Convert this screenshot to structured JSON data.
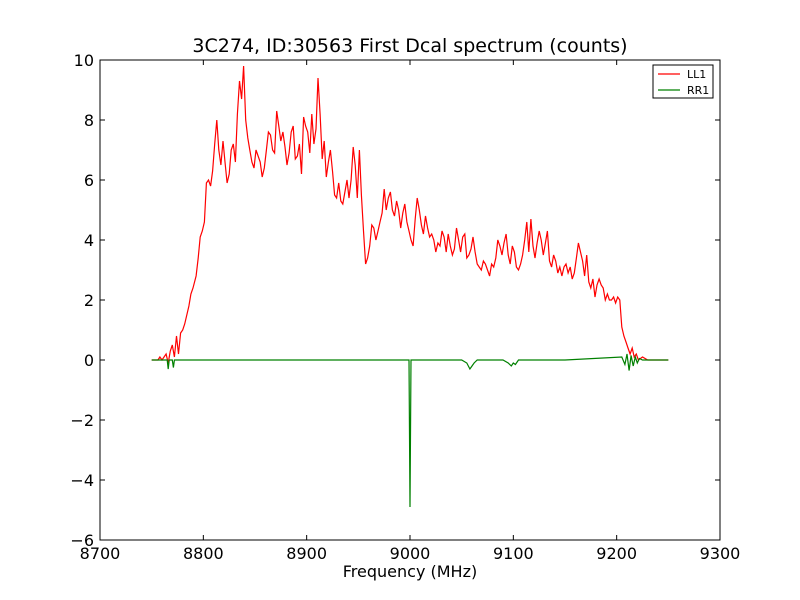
{
  "chart_data": {
    "type": "line",
    "title": "3C274, ID:30563 First Dcal spectrum (counts)",
    "xlabel": "Frequency (MHz)",
    "ylabel": "",
    "xlim": [
      8700,
      9300
    ],
    "ylim": [
      -6,
      10
    ],
    "xticks": [
      8700,
      8800,
      8900,
      9000,
      9100,
      9200,
      9300
    ],
    "yticks": [
      -6,
      -4,
      -2,
      0,
      2,
      4,
      6,
      8,
      10
    ],
    "xtick_labels": [
      "8700",
      "8800",
      "8900",
      "9000",
      "9100",
      "9200",
      "9300"
    ],
    "ytick_labels": [
      "−6",
      "−4",
      "−2",
      "0",
      "2",
      "4",
      "6",
      "8",
      "10"
    ],
    "grid": false,
    "legend_position": "top-right",
    "series": [
      {
        "name": "LL1",
        "color": "#ff0000",
        "x": [
          8750,
          8756,
          8758,
          8760,
          8764,
          8766,
          8768,
          8770,
          8772,
          8774,
          8776,
          8778,
          8780,
          8782,
          8784,
          8786,
          8788,
          8790,
          8793,
          8795,
          8797,
          8799,
          8801,
          8803,
          8805,
          8807,
          8809,
          8811,
          8813,
          8815,
          8817,
          8819,
          8821,
          8823,
          8825,
          8827,
          8829,
          8831,
          8833,
          8835,
          8837,
          8839,
          8841,
          8843,
          8845,
          8847,
          8849,
          8851,
          8853,
          8855,
          8857,
          8859,
          8861,
          8863,
          8865,
          8867,
          8869,
          8871,
          8873,
          8875,
          8877,
          8879,
          8881,
          8883,
          8885,
          8887,
          8889,
          8891,
          8893,
          8895,
          8897,
          8899,
          8901,
          8903,
          8905,
          8907,
          8909,
          8911,
          8913,
          8915,
          8917,
          8919,
          8921,
          8923,
          8925,
          8927,
          8929,
          8931,
          8933,
          8935,
          8937,
          8939,
          8941,
          8943,
          8945,
          8947,
          8949,
          8951,
          8953,
          8955,
          8957,
          8959,
          8961,
          8963,
          8965,
          8967,
          8969,
          8971,
          8973,
          8975,
          8977,
          8979,
          8981,
          8983,
          8985,
          8987,
          8989,
          8991,
          8993,
          8995,
          8997,
          8999,
          9001,
          9003,
          9005,
          9007,
          9009,
          9011,
          9013,
          9015,
          9017,
          9019,
          9021,
          9023,
          9025,
          9027,
          9029,
          9031,
          9033,
          9035,
          9037,
          9039,
          9041,
          9043,
          9045,
          9047,
          9049,
          9051,
          9053,
          9055,
          9057,
          9059,
          9061,
          9063,
          9065,
          9067,
          9069,
          9071,
          9073,
          9075,
          9077,
          9079,
          9081,
          9083,
          9085,
          9087,
          9089,
          9091,
          9093,
          9095,
          9097,
          9099,
          9101,
          9103,
          9105,
          9107,
          9109,
          9111,
          9113,
          9115,
          9117,
          9119,
          9121,
          9123,
          9125,
          9127,
          9129,
          9131,
          9133,
          9135,
          9137,
          9139,
          9141,
          9143,
          9145,
          9147,
          9149,
          9151,
          9153,
          9155,
          9157,
          9159,
          9161,
          9163,
          9165,
          9167,
          9169,
          9171,
          9173,
          9175,
          9177,
          9179,
          9181,
          9183,
          9185,
          9187,
          9189,
          9191,
          9193,
          9195,
          9197,
          9199,
          9201,
          9203,
          9205,
          9207,
          9209,
          9211,
          9213,
          9215,
          9217,
          9219,
          9221,
          9225,
          9230,
          9240,
          9250
        ],
        "y": [
          0.0,
          0.0,
          0.1,
          0.0,
          0.2,
          -0.1,
          0.3,
          0.5,
          0.1,
          0.8,
          0.2,
          0.9,
          1.0,
          1.2,
          1.5,
          1.8,
          2.2,
          2.4,
          2.8,
          3.4,
          4.1,
          4.3,
          4.6,
          5.9,
          6.0,
          5.8,
          6.3,
          7.2,
          8.0,
          7.0,
          6.5,
          7.3,
          6.6,
          5.9,
          6.2,
          7.0,
          7.2,
          6.6,
          8.2,
          9.3,
          8.7,
          9.8,
          8.0,
          7.4,
          7.0,
          6.6,
          6.4,
          7.0,
          6.8,
          6.6,
          6.1,
          6.4,
          7.0,
          7.6,
          7.5,
          7.0,
          6.9,
          8.3,
          7.8,
          7.3,
          7.6,
          7.1,
          6.5,
          6.9,
          7.6,
          7.8,
          6.7,
          6.8,
          7.2,
          6.2,
          8.1,
          7.8,
          7.6,
          6.9,
          8.2,
          7.2,
          7.7,
          9.4,
          8.2,
          6.7,
          7.3,
          6.1,
          6.6,
          7.0,
          6.3,
          5.5,
          5.4,
          5.9,
          5.3,
          5.2,
          5.6,
          6.0,
          5.4,
          6.0,
          7.1,
          6.5,
          5.4,
          7.0,
          5.5,
          4.3,
          3.2,
          3.4,
          3.8,
          4.5,
          4.4,
          4.0,
          4.3,
          4.6,
          4.9,
          5.7,
          5.0,
          5.4,
          5.6,
          5.0,
          4.8,
          5.3,
          5.0,
          4.4,
          4.9,
          5.2,
          4.6,
          4.3,
          4.0,
          3.8,
          4.7,
          5.4,
          5.0,
          4.5,
          4.2,
          4.8,
          4.4,
          4.1,
          4.2,
          4.0,
          3.6,
          3.9,
          3.8,
          4.3,
          4.1,
          3.6,
          4.2,
          3.8,
          3.5,
          3.7,
          4.4,
          4.0,
          3.6,
          4.1,
          4.2,
          3.4,
          3.5,
          3.7,
          4.1,
          3.6,
          3.2,
          3.1,
          3.0,
          3.3,
          3.2,
          3.0,
          2.8,
          3.2,
          3.1,
          3.4,
          4.0,
          3.8,
          3.5,
          3.9,
          4.2,
          3.5,
          3.2,
          3.8,
          3.6,
          3.1,
          3.0,
          3.2,
          3.5,
          4.0,
          4.6,
          3.6,
          4.7,
          3.8,
          3.4,
          3.9,
          4.3,
          4.0,
          3.5,
          3.9,
          4.3,
          3.3,
          3.1,
          3.5,
          3.3,
          2.9,
          3.1,
          2.8,
          3.1,
          3.2,
          2.9,
          3.1,
          2.7,
          2.9,
          3.4,
          3.9,
          3.6,
          3.3,
          2.8,
          3.5,
          2.6,
          2.4,
          2.7,
          2.1,
          2.5,
          2.7,
          2.5,
          2.4,
          2.0,
          2.2,
          2.0,
          2.0,
          2.1,
          1.9,
          2.1,
          2.0,
          1.1,
          0.8,
          0.6,
          0.4,
          0.2,
          0.4,
          0.1,
          0.2,
          0.0,
          0.1,
          0.0,
          0.0,
          0.0
        ]
      },
      {
        "name": "RR1",
        "color": "#008000",
        "x": [
          8750,
          8760,
          8765,
          8766,
          8767,
          8770,
          8771,
          8772,
          8775,
          8800,
          8850,
          8900,
          8950,
          8998,
          8999,
          9000,
          9001,
          9002,
          9050,
          9055,
          9058,
          9060,
          9062,
          9065,
          9090,
          9095,
          9098,
          9100,
          9102,
          9105,
          9150,
          9205,
          9208,
          9210,
          9212,
          9214,
          9216,
          9218,
          9220,
          9222,
          9225,
          9230,
          9250
        ],
        "y": [
          0.0,
          0.0,
          0.0,
          -0.3,
          0.0,
          0.0,
          -0.25,
          0.0,
          0.0,
          0.0,
          0.0,
          0.0,
          0.0,
          0.0,
          0.0,
          -4.9,
          0.0,
          0.0,
          0.0,
          -0.1,
          -0.3,
          -0.2,
          -0.1,
          0.0,
          0.0,
          -0.1,
          -0.2,
          -0.1,
          -0.15,
          0.0,
          0.0,
          0.1,
          -0.15,
          0.2,
          -0.35,
          0.15,
          -0.2,
          0.1,
          -0.1,
          0.05,
          0.0,
          0.0,
          0.0
        ]
      }
    ]
  }
}
